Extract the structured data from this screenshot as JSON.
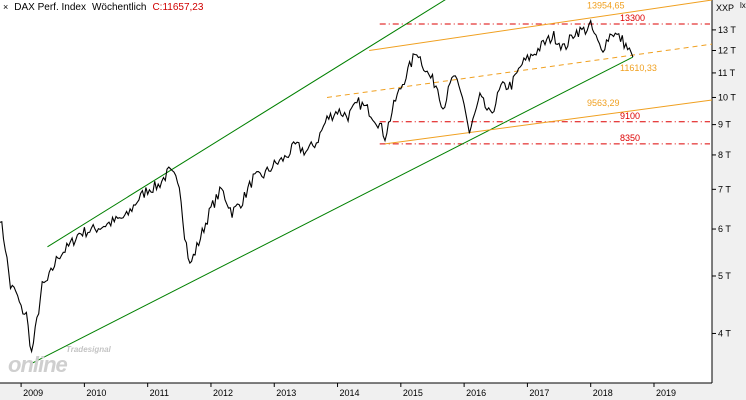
{
  "header": {
    "close_glyph": "×",
    "instrument": "DAX Perf. Index",
    "interval": "Wöchentlich",
    "last_label": "C:11657,23"
  },
  "corner_label": "lx",
  "watermark": {
    "top": "Tradesignal",
    "main": "online"
  },
  "colors": {
    "price": "#000000",
    "green_channel": "#008000",
    "orange_line": "#f0a020",
    "red_level": "#dd0000",
    "axis_bg": "#f0f0f0"
  },
  "chart_data": {
    "type": "line",
    "title": "DAX Perf. Index",
    "ylabel": "XXP",
    "y_scale": "log",
    "ylim": [
      3300,
      14600
    ],
    "xlim": [
      "2008-09",
      "2019-12"
    ],
    "x_tick_labels": [
      "2009",
      "2010",
      "2011",
      "2012",
      "2013",
      "2014",
      "2015",
      "2016",
      "2017",
      "2018",
      "2019"
    ],
    "y_tick_labels": [
      "4 T",
      "5 T",
      "6 T",
      "7 T",
      "8 T",
      "9 T",
      "10 T",
      "11 T",
      "12 T",
      "13 T"
    ],
    "y_ticks": [
      4000,
      5000,
      6000,
      7000,
      8000,
      9000,
      10000,
      11000,
      12000,
      13000
    ],
    "series": [
      {
        "x": [
          "2008-09",
          "2008-10",
          "2008-11",
          "2008-12",
          "2009-01",
          "2009-02",
          "2009-03",
          "2009-04",
          "2009-05",
          "2009-06",
          "2009-08",
          "2009-10",
          "2009-12",
          "2010-03",
          "2010-05",
          "2010-07",
          "2010-09",
          "2010-11",
          "2011-01",
          "2011-03",
          "2011-05",
          "2011-07",
          "2011-08",
          "2011-09",
          "2011-11",
          "2012-01",
          "2012-03",
          "2012-05",
          "2012-07",
          "2012-09",
          "2012-11",
          "2013-01",
          "2013-03",
          "2013-05",
          "2013-07",
          "2013-09",
          "2013-11",
          "2014-01",
          "2014-03",
          "2014-05",
          "2014-07",
          "2014-09",
          "2014-10",
          "2014-12",
          "2015-02",
          "2015-04",
          "2015-06",
          "2015-08",
          "2015-09",
          "2015-11",
          "2016-01",
          "2016-02",
          "2016-04",
          "2016-06",
          "2016-08",
          "2016-10",
          "2016-12",
          "2017-02",
          "2017-04",
          "2017-06",
          "2017-08",
          "2017-10",
          "2017-12",
          "2018-01",
          "2018-03",
          "2018-05",
          "2018-07",
          "2018-09"
        ],
        "y": [
          6300,
          5600,
          4800,
          4700,
          4400,
          4300,
          3700,
          4200,
          4800,
          4900,
          5400,
          5600,
          5900,
          6000,
          6100,
          6200,
          6300,
          6700,
          7000,
          7100,
          7500,
          7200,
          5900,
          5200,
          5800,
          6500,
          7000,
          6400,
          6700,
          7300,
          7400,
          7700,
          7900,
          8300,
          8100,
          8400,
          9200,
          9500,
          9300,
          9800,
          9500,
          9000,
          8600,
          9900,
          10900,
          12000,
          11000,
          10400,
          9600,
          10900,
          9800,
          8700,
          10000,
          9300,
          10400,
          10500,
          11400,
          11800,
          12300,
          12700,
          12100,
          12900,
          13000,
          13200,
          12000,
          12900,
          12500,
          11700
        ]
      }
    ],
    "trend_lines": [
      {
        "name": "green_upper",
        "from": [
          "2009-06",
          5600
        ],
        "to": [
          "2016-06",
          16300
        ]
      },
      {
        "name": "green_lower",
        "from": [
          "2009-03",
          3560
        ],
        "to": [
          "2018-09",
          11700
        ]
      },
      {
        "name": "orange_upper",
        "from": [
          "2014-07",
          12000
        ],
        "to": [
          "2019-12",
          14600
        ]
      },
      {
        "name": "orange_lower",
        "from": [
          "2014-10",
          8350
        ],
        "to": [
          "2019-12",
          9900
        ]
      },
      {
        "name": "orange_dashed",
        "from": [
          "2013-11",
          10000
        ],
        "to": [
          "2019-12",
          12300
        ]
      }
    ],
    "annotations": [
      {
        "text": "13954,65",
        "y": 13954.65,
        "color": "orange"
      },
      {
        "text": "13300",
        "y": 13300,
        "color": "red",
        "style": "dashdot"
      },
      {
        "text": "11610,33",
        "y": 11610.33,
        "color": "orange"
      },
      {
        "text": "9563,29",
        "y": 9563.29,
        "color": "orange"
      },
      {
        "text": "9100",
        "y": 9100,
        "color": "red",
        "style": "dashdot"
      },
      {
        "text": "8350",
        "y": 8350,
        "color": "red",
        "style": "dashdot"
      }
    ]
  }
}
